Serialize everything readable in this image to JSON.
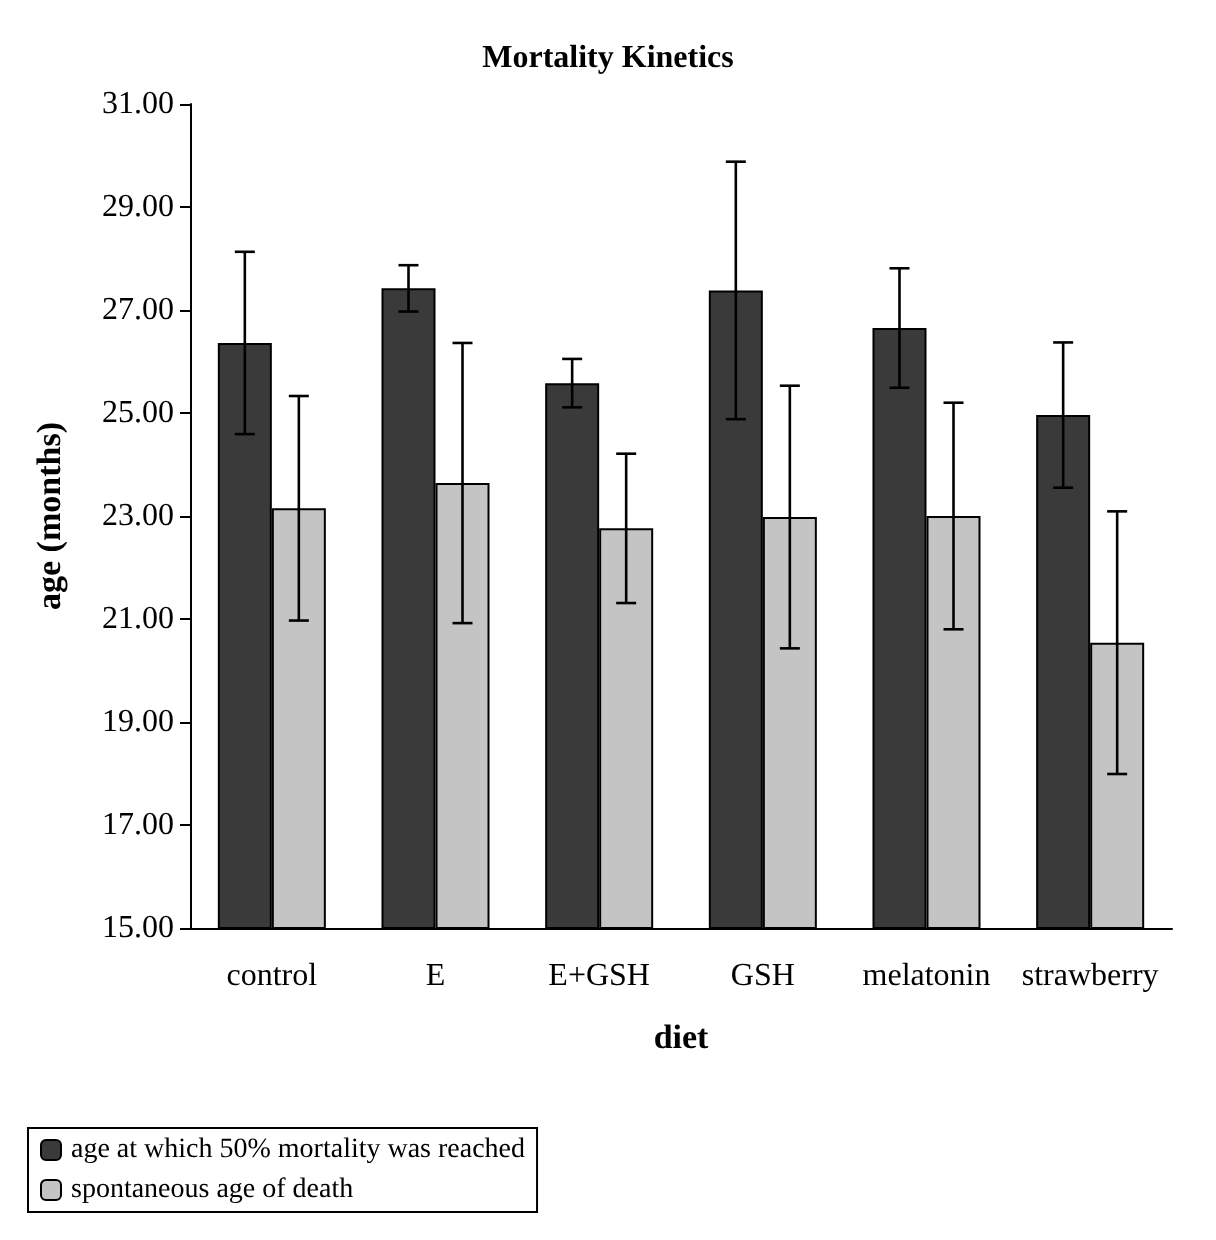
{
  "chart_data": {
    "type": "bar",
    "title": "Mortality Kinetics",
    "xlabel": "diet",
    "ylabel": "age (months)",
    "categories": [
      "control",
      "E",
      "E+GSH",
      "GSH",
      "melatonin",
      "strawberry"
    ],
    "series": [
      {
        "name": "age at which 50% mortality was reached",
        "color": "#3a3a3a",
        "values": [
          26.36,
          27.42,
          25.58,
          27.38,
          26.65,
          24.96
        ],
        "errors": [
          1.77,
          0.45,
          0.47,
          2.5,
          1.16,
          1.41
        ]
      },
      {
        "name": "spontaneous age of death",
        "color": "#c4c4c4",
        "values": [
          23.15,
          23.64,
          22.76,
          22.98,
          23.0,
          20.54
        ],
        "errors": [
          2.18,
          2.72,
          1.45,
          2.55,
          2.2,
          2.55
        ]
      }
    ],
    "ylim": [
      15,
      31
    ],
    "yticks": [
      {
        "value": 15,
        "label": "15.00"
      },
      {
        "value": 17,
        "label": "17.00"
      },
      {
        "value": 19,
        "label": "19.00"
      },
      {
        "value": 21,
        "label": "21.00"
      },
      {
        "value": 23,
        "label": "23.00"
      },
      {
        "value": 25,
        "label": "25.00"
      },
      {
        "value": 27,
        "label": "27.00"
      },
      {
        "value": 29,
        "label": "29.00"
      },
      {
        "value": 31,
        "label": "31.00"
      }
    ],
    "grid": false,
    "legend": "bottom left"
  }
}
